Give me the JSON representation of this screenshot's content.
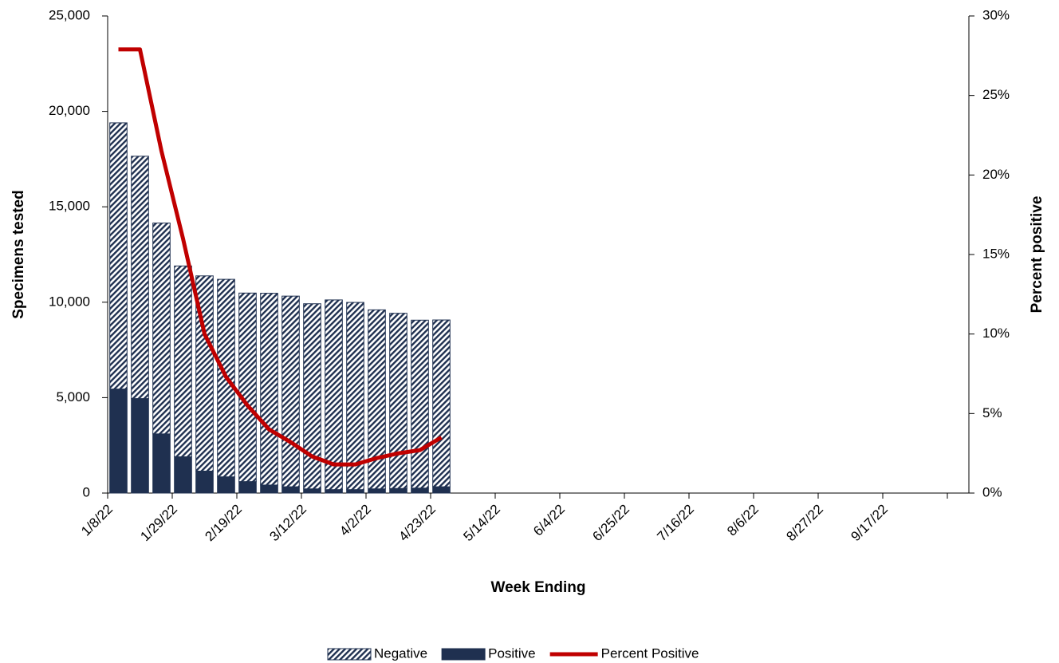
{
  "chart_data": {
    "type": "bar",
    "x_label": "Week Ending",
    "y_label": "Specimens tested",
    "y2_label": "Percent positive",
    "categories": [
      "1/8/22",
      null,
      null,
      "1/29/22",
      null,
      null,
      "2/19/22",
      null,
      null,
      "3/12/22",
      null,
      null,
      "4/2/22",
      null,
      null,
      "4/23/22",
      null,
      null,
      "5/14/22",
      null,
      null,
      "6/4/22",
      null,
      null,
      "6/25/22",
      null,
      null,
      "7/16/22",
      null,
      null,
      "8/6/22",
      null,
      null,
      "8/27/22",
      null,
      null,
      "9/17/22",
      null,
      null,
      null
    ],
    "series": [
      {
        "name": "Negative",
        "color": "#1f3050",
        "pattern": "hatch",
        "values": [
          13950,
          12700,
          11050,
          10000,
          10230,
          10350,
          9880,
          10050,
          9990,
          9700,
          9940,
          9810,
          9380,
          9180,
          8800,
          8740,
          null,
          null,
          null,
          null,
          null,
          null,
          null,
          null,
          null,
          null,
          null,
          null,
          null,
          null,
          null,
          null,
          null,
          null,
          null,
          null,
          null,
          null,
          null,
          null
        ]
      },
      {
        "name": "Positive",
        "color": "#1f3050",
        "values": [
          5450,
          4950,
          3100,
          1900,
          1150,
          850,
          600,
          420,
          330,
          220,
          180,
          180,
          220,
          240,
          260,
          330,
          null,
          null,
          null,
          null,
          null,
          null,
          null,
          null,
          null,
          null,
          null,
          null,
          null,
          null,
          null,
          null,
          null,
          null,
          null,
          null,
          null,
          null,
          null,
          null
        ]
      },
      {
        "name": "Percent Positive",
        "color": "#c00000",
        "type": "line",
        "axis": "y2",
        "values": [
          27.9,
          27.9,
          21.5,
          16.0,
          10.0,
          7.3,
          5.5,
          4.0,
          3.2,
          2.3,
          1.8,
          1.8,
          2.2,
          2.5,
          2.7,
          3.5,
          null,
          null,
          null,
          null,
          null,
          null,
          null,
          null,
          null,
          null,
          null,
          null,
          null,
          null,
          null,
          null,
          null,
          null,
          null,
          null,
          null,
          null,
          null,
          null
        ]
      }
    ],
    "ylim": [
      0,
      25000
    ],
    "yticks": [
      0,
      {
        "value": 5000,
        "label": "5,000"
      },
      {
        "value": 10000,
        "label": "10,000"
      },
      {
        "value": 15000,
        "label": "15,000"
      },
      {
        "value": 20000,
        "label": "20,000"
      },
      {
        "value": 25000,
        "label": "25,000"
      }
    ],
    "y2lim": [
      0,
      30
    ],
    "y2ticks": [
      {
        "value": 0,
        "label": "0%"
      },
      {
        "value": 5,
        "label": "5%"
      },
      {
        "value": 10,
        "label": "10%"
      },
      {
        "value": 15,
        "label": "15%"
      },
      {
        "value": 20,
        "label": "20%"
      },
      {
        "value": 25,
        "label": "25%"
      },
      {
        "value": 30,
        "label": "30%"
      }
    ],
    "xtick_every": 3,
    "grid": false,
    "legend": "bottom"
  }
}
